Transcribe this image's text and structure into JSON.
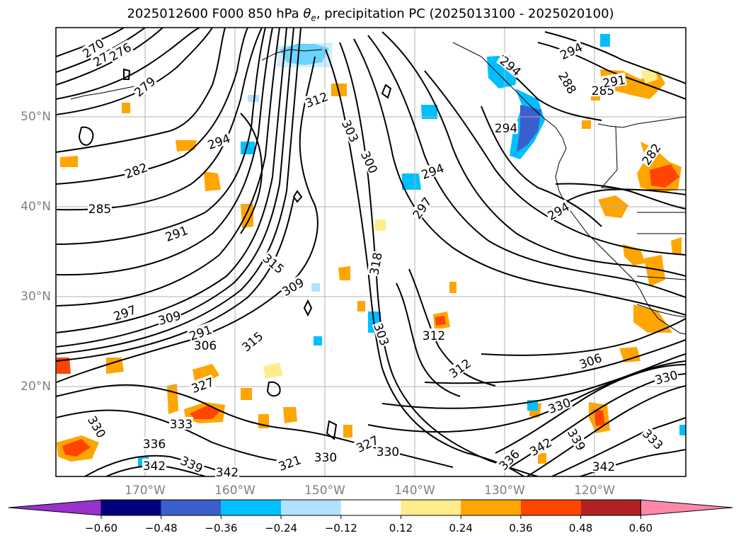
{
  "title": {
    "prefix": "2025012600 F000 850 hPa ",
    "theta": "θ",
    "subscript": "e",
    "suffix": ", precipitation PC (2025013100 - 2025020100)"
  },
  "axes": {
    "lat_labels": [
      "50°N",
      "40°N",
      "30°N",
      "20°N"
    ],
    "lon_labels": [
      "170°W",
      "160°W",
      "150°W",
      "140°W",
      "130°W",
      "120°W"
    ]
  },
  "colorbar": {
    "ticks": [
      "−0.60",
      "−0.48",
      "−0.36",
      "−0.24",
      "−0.12",
      "0.12",
      "0.24",
      "0.36",
      "0.48",
      "0.60"
    ],
    "colors": [
      "#9932cc",
      "#000080",
      "#3a5fcd",
      "#00bfff",
      "#b0e2ff",
      "#ffffff",
      "#ffec8b",
      "#ffa500",
      "#ff4500",
      "#b22222",
      "#ff88aa"
    ],
    "under_color": "#9932cc",
    "over_color": "#ff88aa"
  },
  "contour_labels": [
    "270",
    "273",
    "276",
    "279",
    "282",
    "285",
    "291",
    "294",
    "297",
    "300",
    "303",
    "306",
    "309",
    "312",
    "315",
    "318",
    "321",
    "327",
    "330",
    "333",
    "336",
    "339",
    "342"
  ],
  "contour_labels_shown": [
    {
      "text": "270",
      "key": "a"
    },
    {
      "text": "273",
      "key": "b"
    },
    {
      "text": "276",
      "key": "c"
    },
    {
      "text": "279",
      "key": "d"
    },
    {
      "text": "282",
      "key": "e"
    },
    {
      "text": "285",
      "key": "f"
    },
    {
      "text": "291",
      "key": "g"
    },
    {
      "text": "294",
      "key": "h"
    },
    {
      "text": "312",
      "key": "i"
    },
    {
      "text": "303",
      "key": "j"
    },
    {
      "text": "300",
      "key": "k"
    },
    {
      "text": "294",
      "key": "l"
    },
    {
      "text": "297",
      "key": "m"
    },
    {
      "text": "294",
      "key": "n"
    },
    {
      "text": "291",
      "key": "o"
    },
    {
      "text": "288",
      "key": "p"
    },
    {
      "text": "285",
      "key": "q"
    },
    {
      "text": "294",
      "key": "r"
    },
    {
      "text": "282",
      "key": "s"
    },
    {
      "text": "294",
      "key": "t"
    },
    {
      "text": "315",
      "key": "u"
    },
    {
      "text": "309",
      "key": "v"
    },
    {
      "text": "306",
      "key": "w"
    },
    {
      "text": "303",
      "key": "x"
    },
    {
      "text": "312",
      "key": "y"
    },
    {
      "text": "312",
      "key": "z"
    },
    {
      "text": "306",
      "key": "aa"
    },
    {
      "text": "330",
      "key": "ab"
    },
    {
      "text": "333",
      "key": "ac"
    },
    {
      "text": "336",
      "key": "ad"
    },
    {
      "text": "342",
      "key": "ae"
    },
    {
      "text": "339",
      "key": "af"
    },
    {
      "text": "342",
      "key": "ag"
    },
    {
      "text": "327",
      "key": "ah"
    },
    {
      "text": "330",
      "key": "ai"
    },
    {
      "text": "330",
      "key": "aj"
    },
    {
      "text": "321",
      "key": "ak"
    },
    {
      "text": "342",
      "key": "al"
    },
    {
      "text": "339",
      "key": "am"
    },
    {
      "text": "333",
      "key": "an"
    },
    {
      "text": "342",
      "key": "ao"
    },
    {
      "text": "330",
      "key": "ap"
    },
    {
      "text": "291",
      "key": "aq"
    },
    {
      "text": "297",
      "key": "ar"
    },
    {
      "text": "309",
      "key": "as"
    },
    {
      "text": "291",
      "key": "at"
    },
    {
      "text": "294",
      "key": "au"
    },
    {
      "text": "336",
      "key": "av"
    },
    {
      "text": "315",
      "key": "aw"
    },
    {
      "text": "327",
      "key": "ax"
    },
    {
      "text": "318",
      "key": "ay"
    },
    {
      "text": "330",
      "key": "az"
    }
  ]
}
